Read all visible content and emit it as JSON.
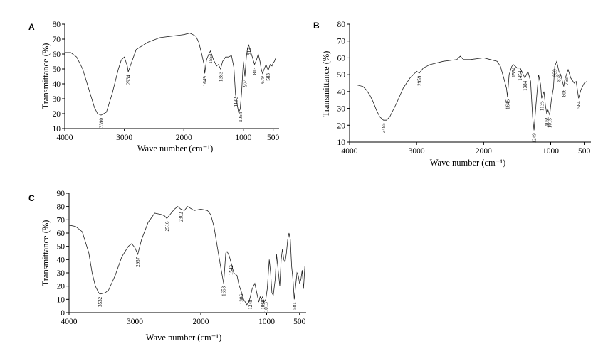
{
  "chart_data": [
    {
      "type": "line",
      "panel": "A",
      "xlabel": "Wave number (cm⁻¹)",
      "ylabel": "Transmittance (%)",
      "xlim": [
        4000,
        400
      ],
      "x_reversed": true,
      "ylim": [
        10,
        80
      ],
      "xticks": [
        4000,
        3000,
        2000,
        1000,
        500
      ],
      "yticks": [
        10,
        20,
        30,
        40,
        50,
        60,
        70,
        80
      ],
      "peak_labels": [
        {
          "x": 3390,
          "label": "3390"
        },
        {
          "x": 2934,
          "label": "2934"
        },
        {
          "x": 1649,
          "label": "1649"
        },
        {
          "x": 1554,
          "label": "1554"
        },
        {
          "x": 1383,
          "label": "1383"
        },
        {
          "x": 1132,
          "label": "1132"
        },
        {
          "x": 1054,
          "label": "1054"
        },
        {
          "x": 974,
          "label": "974"
        },
        {
          "x": 910,
          "label": "910"
        },
        {
          "x": 813,
          "label": "813"
        },
        {
          "x": 679,
          "label": "679"
        },
        {
          "x": 583,
          "label": "583"
        }
      ],
      "series": [
        {
          "x": [
            4000,
            3900,
            3800,
            3700,
            3600,
            3500,
            3450,
            3390,
            3300,
            3200,
            3100,
            3050,
            3000,
            2950,
            2934,
            2900,
            2800,
            2600,
            2400,
            2200,
            2000,
            1900,
            1850,
            1800,
            1750,
            1700,
            1660,
            1649,
            1620,
            1580,
            1554,
            1500,
            1450,
            1420,
            1383,
            1350,
            1300,
            1250,
            1200,
            1160,
            1132,
            1100,
            1080,
            1054,
            1030,
            1000,
            974,
            950,
            930,
            910,
            890,
            850,
            813,
            780,
            750,
            720,
            700,
            679,
            650,
            620,
            583,
            550,
            520,
            500,
            480,
            460
          ],
          "y": [
            61,
            61,
            58,
            50,
            37,
            24,
            20,
            19,
            21,
            34,
            50,
            56,
            58,
            52,
            48,
            52,
            63,
            68,
            71,
            72,
            73,
            74,
            73,
            72,
            68,
            60,
            53,
            47,
            56,
            60,
            62,
            56,
            52,
            53,
            50,
            55,
            58,
            58,
            59,
            51,
            33,
            25,
            21,
            23,
            34,
            55,
            45,
            58,
            64,
            66,
            63,
            58,
            53,
            56,
            60,
            55,
            50,
            47,
            50,
            53,
            49,
            53,
            52,
            54,
            55,
            57
          ]
        }
      ]
    },
    {
      "type": "line",
      "panel": "B",
      "xlabel": "Wave number (cm⁻¹)",
      "ylabel": "Transmittance (%)",
      "xlim": [
        4000,
        400
      ],
      "x_reversed": true,
      "ylim": [
        10,
        80
      ],
      "xticks": [
        4000,
        3000,
        2000,
        1000,
        500
      ],
      "yticks": [
        10,
        20,
        30,
        40,
        50,
        60,
        70,
        80
      ],
      "peak_labels": [
        {
          "x": 3495,
          "label": "3495"
        },
        {
          "x": 2959,
          "label": "2959"
        },
        {
          "x": 1645,
          "label": "1645"
        },
        {
          "x": 1554,
          "label": "1554"
        },
        {
          "x": 1454,
          "label": "1454"
        },
        {
          "x": 1384,
          "label": "1384"
        },
        {
          "x": 1249,
          "label": "1249"
        },
        {
          "x": 1135,
          "label": "1135"
        },
        {
          "x": 1059,
          "label": "1059"
        },
        {
          "x": 1015,
          "label": "1015"
        },
        {
          "x": 939,
          "label": "939"
        },
        {
          "x": 878,
          "label": "878"
        },
        {
          "x": 806,
          "label": "806"
        },
        {
          "x": 765,
          "label": "765"
        },
        {
          "x": 584,
          "label": "584"
        }
      ],
      "series": [
        {
          "x": [
            4000,
            3900,
            3800,
            3750,
            3700,
            3650,
            3600,
            3550,
            3495,
            3450,
            3400,
            3300,
            3200,
            3100,
            3000,
            2959,
            2900,
            2800,
            2600,
            2400,
            2350,
            2300,
            2200,
            2000,
            1900,
            1800,
            1750,
            1700,
            1660,
            1645,
            1620,
            1580,
            1554,
            1500,
            1454,
            1420,
            1384,
            1340,
            1300,
            1270,
            1249,
            1220,
            1180,
            1150,
            1135,
            1100,
            1080,
            1059,
            1040,
            1015,
            990,
            960,
            939,
            910,
            878,
            850,
            806,
            790,
            765,
            740,
            700,
            650,
            620,
            584,
            550,
            500,
            460
          ],
          "y": [
            44,
            44,
            43,
            41,
            38,
            34,
            29,
            25,
            23,
            23,
            25,
            33,
            42,
            48,
            52,
            51,
            54,
            56,
            58,
            59,
            61,
            59,
            59,
            60,
            59,
            58,
            55,
            48,
            42,
            37,
            50,
            55,
            56,
            54,
            54,
            51,
            48,
            52,
            46,
            25,
            17,
            32,
            50,
            44,
            36,
            40,
            32,
            27,
            29,
            26,
            35,
            42,
            55,
            58,
            52,
            50,
            43,
            47,
            50,
            53,
            48,
            45,
            46,
            36,
            41,
            45,
            46
          ]
        }
      ]
    },
    {
      "type": "line",
      "panel": "C",
      "xlabel": "Wave number (cm⁻¹)",
      "ylabel": "Transmittance (%)",
      "xlim": [
        4000,
        400
      ],
      "x_reversed": true,
      "ylim": [
        0,
        90
      ],
      "xticks": [
        4000,
        3000,
        2000,
        1000,
        500
      ],
      "yticks": [
        0,
        10,
        20,
        30,
        40,
        50,
        60,
        70,
        80,
        90
      ],
      "peak_labels": [
        {
          "x": 3532,
          "label": "3532"
        },
        {
          "x": 2957,
          "label": "2957"
        },
        {
          "x": 2516,
          "label": "2516"
        },
        {
          "x": 2302,
          "label": "2302"
        },
        {
          "x": 1653,
          "label": "1653"
        },
        {
          "x": 1542,
          "label": "1542"
        },
        {
          "x": 1386,
          "label": "1386"
        },
        {
          "x": 1248,
          "label": "1248"
        },
        {
          "x": 1060,
          "label": "1060"
        },
        {
          "x": 1013,
          "label": "1013"
        },
        {
          "x": 581,
          "label": "581"
        }
      ],
      "series": [
        {
          "x": [
            4000,
            3900,
            3800,
            3700,
            3650,
            3600,
            3550,
            3532,
            3450,
            3400,
            3300,
            3200,
            3100,
            3050,
            3000,
            2957,
            2900,
            2800,
            2700,
            2600,
            2550,
            2516,
            2450,
            2400,
            2350,
            2302,
            2250,
            2200,
            2100,
            2000,
            1900,
            1850,
            1800,
            1750,
            1700,
            1653,
            1620,
            1600,
            1570,
            1542,
            1500,
            1450,
            1420,
            1386,
            1350,
            1300,
            1270,
            1248,
            1220,
            1180,
            1150,
            1120,
            1100,
            1080,
            1060,
            1040,
            1013,
            990,
            960,
            940,
            920,
            900,
            870,
            850,
            820,
            800,
            780,
            760,
            740,
            720,
            700,
            680,
            660,
            640,
            620,
            600,
            581,
            560,
            540,
            520,
            500,
            480,
            460,
            440,
            420
          ],
          "y": [
            66,
            65,
            61,
            45,
            30,
            20,
            15,
            14,
            15,
            17,
            28,
            42,
            50,
            52,
            49,
            44,
            55,
            68,
            75,
            74,
            73,
            71,
            75,
            78,
            80,
            78,
            77,
            80,
            77,
            78,
            77,
            74,
            65,
            50,
            35,
            22,
            45,
            46,
            43,
            38,
            30,
            28,
            21,
            16,
            10,
            6,
            8,
            12,
            18,
            22,
            15,
            8,
            12,
            10,
            12,
            8,
            10,
            18,
            40,
            30,
            15,
            13,
            25,
            44,
            30,
            20,
            40,
            48,
            40,
            38,
            45,
            55,
            60,
            55,
            35,
            25,
            10,
            20,
            30,
            28,
            22,
            25,
            32,
            18,
            35
          ]
        }
      ]
    }
  ]
}
